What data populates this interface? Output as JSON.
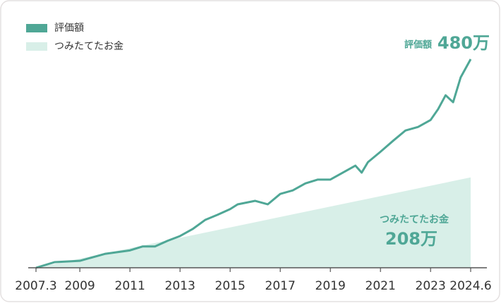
{
  "chart_data": {
    "type": "line-area",
    "series": [
      {
        "name": "評価額",
        "color": "#4fa796",
        "kind": "line",
        "x": [
          2007.25,
          2008,
          2009,
          2010,
          2011,
          2011.5,
          2012,
          2012.5,
          2013,
          2013.5,
          2014,
          2014.5,
          2015,
          2015.3,
          2016,
          2016.5,
          2017,
          2017.5,
          2018,
          2018.5,
          2019,
          2019.5,
          2020,
          2020.25,
          2020.5,
          2021,
          2021.5,
          2022,
          2022.5,
          2023,
          2023.3,
          2023.6,
          2023.9,
          2024.2,
          2024.6
        ],
        "values": [
          0,
          13,
          16,
          32,
          40,
          49,
          49,
          62,
          73,
          89,
          110,
          122,
          135,
          146,
          154,
          146,
          170,
          178,
          194,
          203,
          203,
          219,
          235,
          219,
          243,
          267,
          292,
          316,
          324,
          340,
          365,
          397,
          381,
          438,
          480
        ]
      },
      {
        "name": "つみたてたお金",
        "color": "#d8efe8",
        "kind": "area",
        "x": [
          2007.25,
          2024.6
        ],
        "values": [
          0,
          208
        ]
      }
    ],
    "xlim": [
      2007.25,
      2024.6
    ],
    "xticks": [
      {
        "value": 2007.25,
        "label": "2007.3"
      },
      2009,
      2011,
      2013,
      2015,
      2017,
      2019,
      2021,
      2023,
      2024.6
    ],
    "ylim": [
      0,
      480
    ],
    "annotations": [
      {
        "series": 0,
        "label": "評価額",
        "value_label": "480万",
        "value": 480
      },
      {
        "series": 1,
        "label": "つみたてたお金",
        "value_label": "208万",
        "value": 208
      }
    ]
  }
}
